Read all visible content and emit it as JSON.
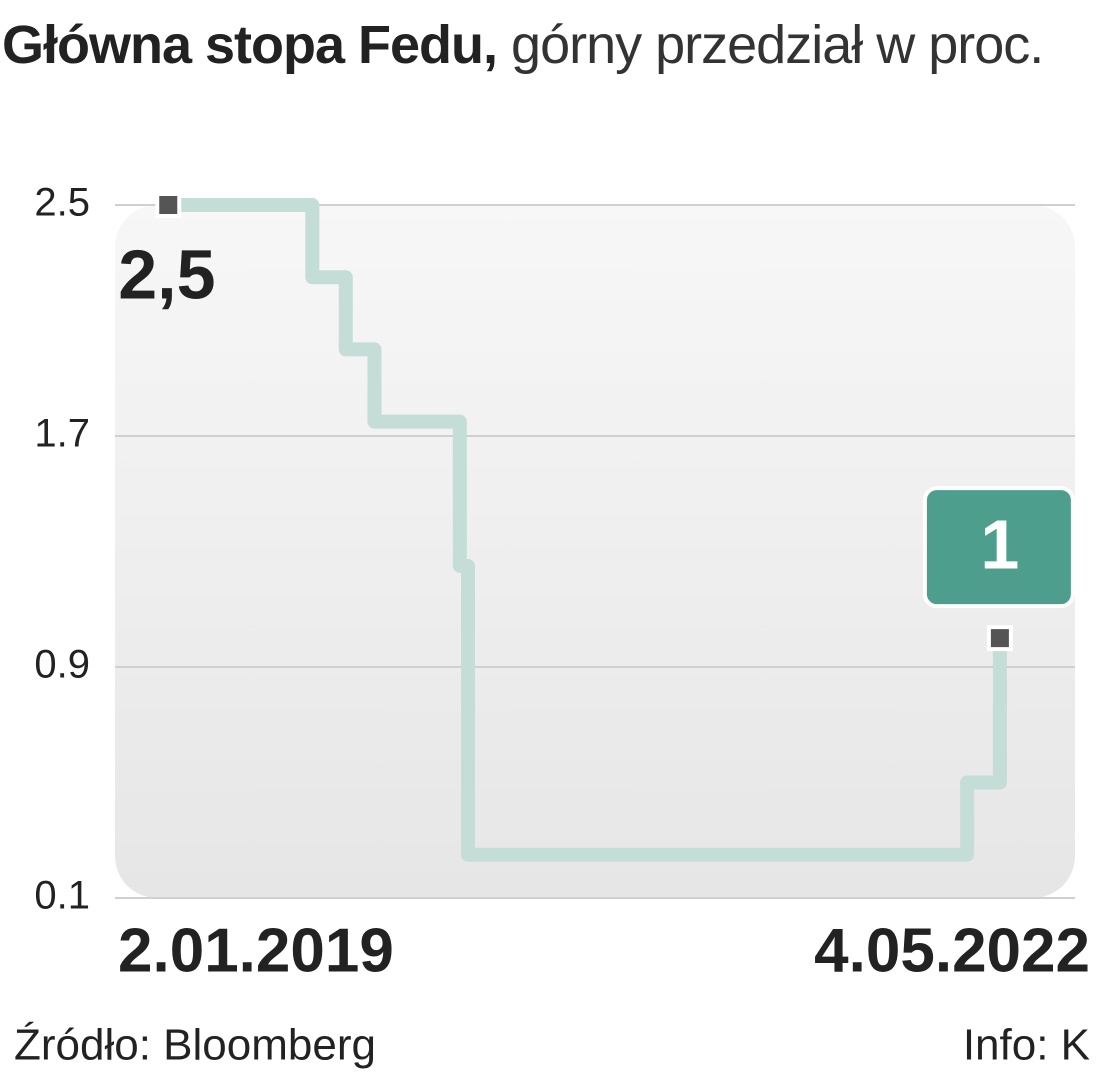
{
  "chart_data": {
    "type": "line",
    "step": "post",
    "title": "Główna stopa Fedu,",
    "subtitle": "górny przedział w proc.",
    "x": [
      "2019-01-02",
      "2019-08-01",
      "2019-09-19",
      "2019-10-31",
      "2020-03-04",
      "2020-03-16",
      "2022-03-17",
      "2022-05-04"
    ],
    "values": [
      2.5,
      2.25,
      2.0,
      1.75,
      1.25,
      0.25,
      0.5,
      1.0
    ],
    "value_labels": [
      "2,5",
      null,
      null,
      null,
      null,
      null,
      null,
      "1"
    ],
    "color": "#c5ddd7",
    "xlim": [
      "2018-10-16",
      "2022-08-22"
    ],
    "xticks": [
      {
        "value": "2019-01-02",
        "label": "2.01.2019"
      },
      {
        "value": "2022-05-04",
        "label": "4.05.2022"
      }
    ],
    "ylim": [
      0.1,
      2.5
    ],
    "yticks": [
      2.5,
      1.7,
      0.9,
      0.1
    ],
    "grid": true,
    "source": "Źródło: Bloomberg",
    "credit": "Info: K"
  }
}
